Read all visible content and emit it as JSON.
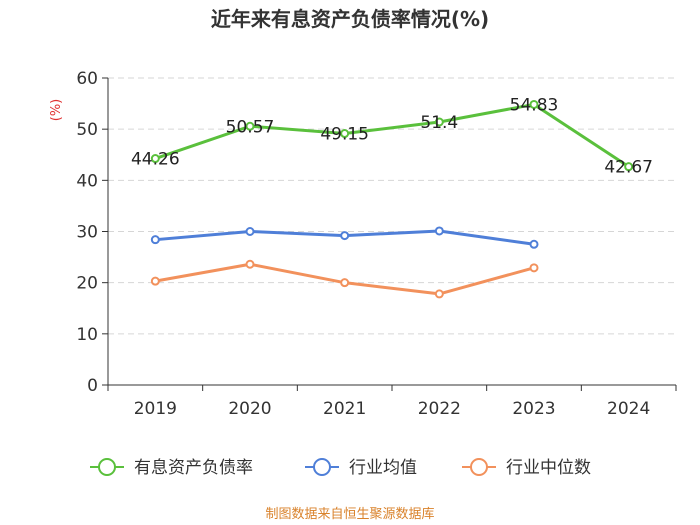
{
  "chart_data": {
    "type": "line",
    "title": "近年来有息资产负债率情况(%)",
    "ylabel": "(%)",
    "xlabel": "",
    "categories": [
      "2019",
      "2020",
      "2021",
      "2022",
      "2023",
      "2024"
    ],
    "ylim": [
      0,
      60
    ],
    "yticks": [
      0,
      10,
      20,
      30,
      40,
      50,
      60
    ],
    "series": [
      {
        "name": "有息资产负债率",
        "color": "#5ac03c",
        "values": [
          44.26,
          50.57,
          49.15,
          51.4,
          54.83,
          42.67
        ],
        "labels": [
          "44.26",
          "50.57",
          "49.15",
          "51.4",
          "54.83",
          "42.67"
        ]
      },
      {
        "name": "行业均值",
        "color": "#4f7fd8",
        "values": [
          28.4,
          30.0,
          29.2,
          30.1,
          27.5,
          null
        ]
      },
      {
        "name": "行业中位数",
        "color": "#f2915c",
        "values": [
          20.3,
          23.6,
          20.0,
          17.8,
          22.9,
          null
        ]
      }
    ],
    "legend_position": "bottom",
    "grid": true
  },
  "source": "制图数据来自恒生聚源数据库"
}
